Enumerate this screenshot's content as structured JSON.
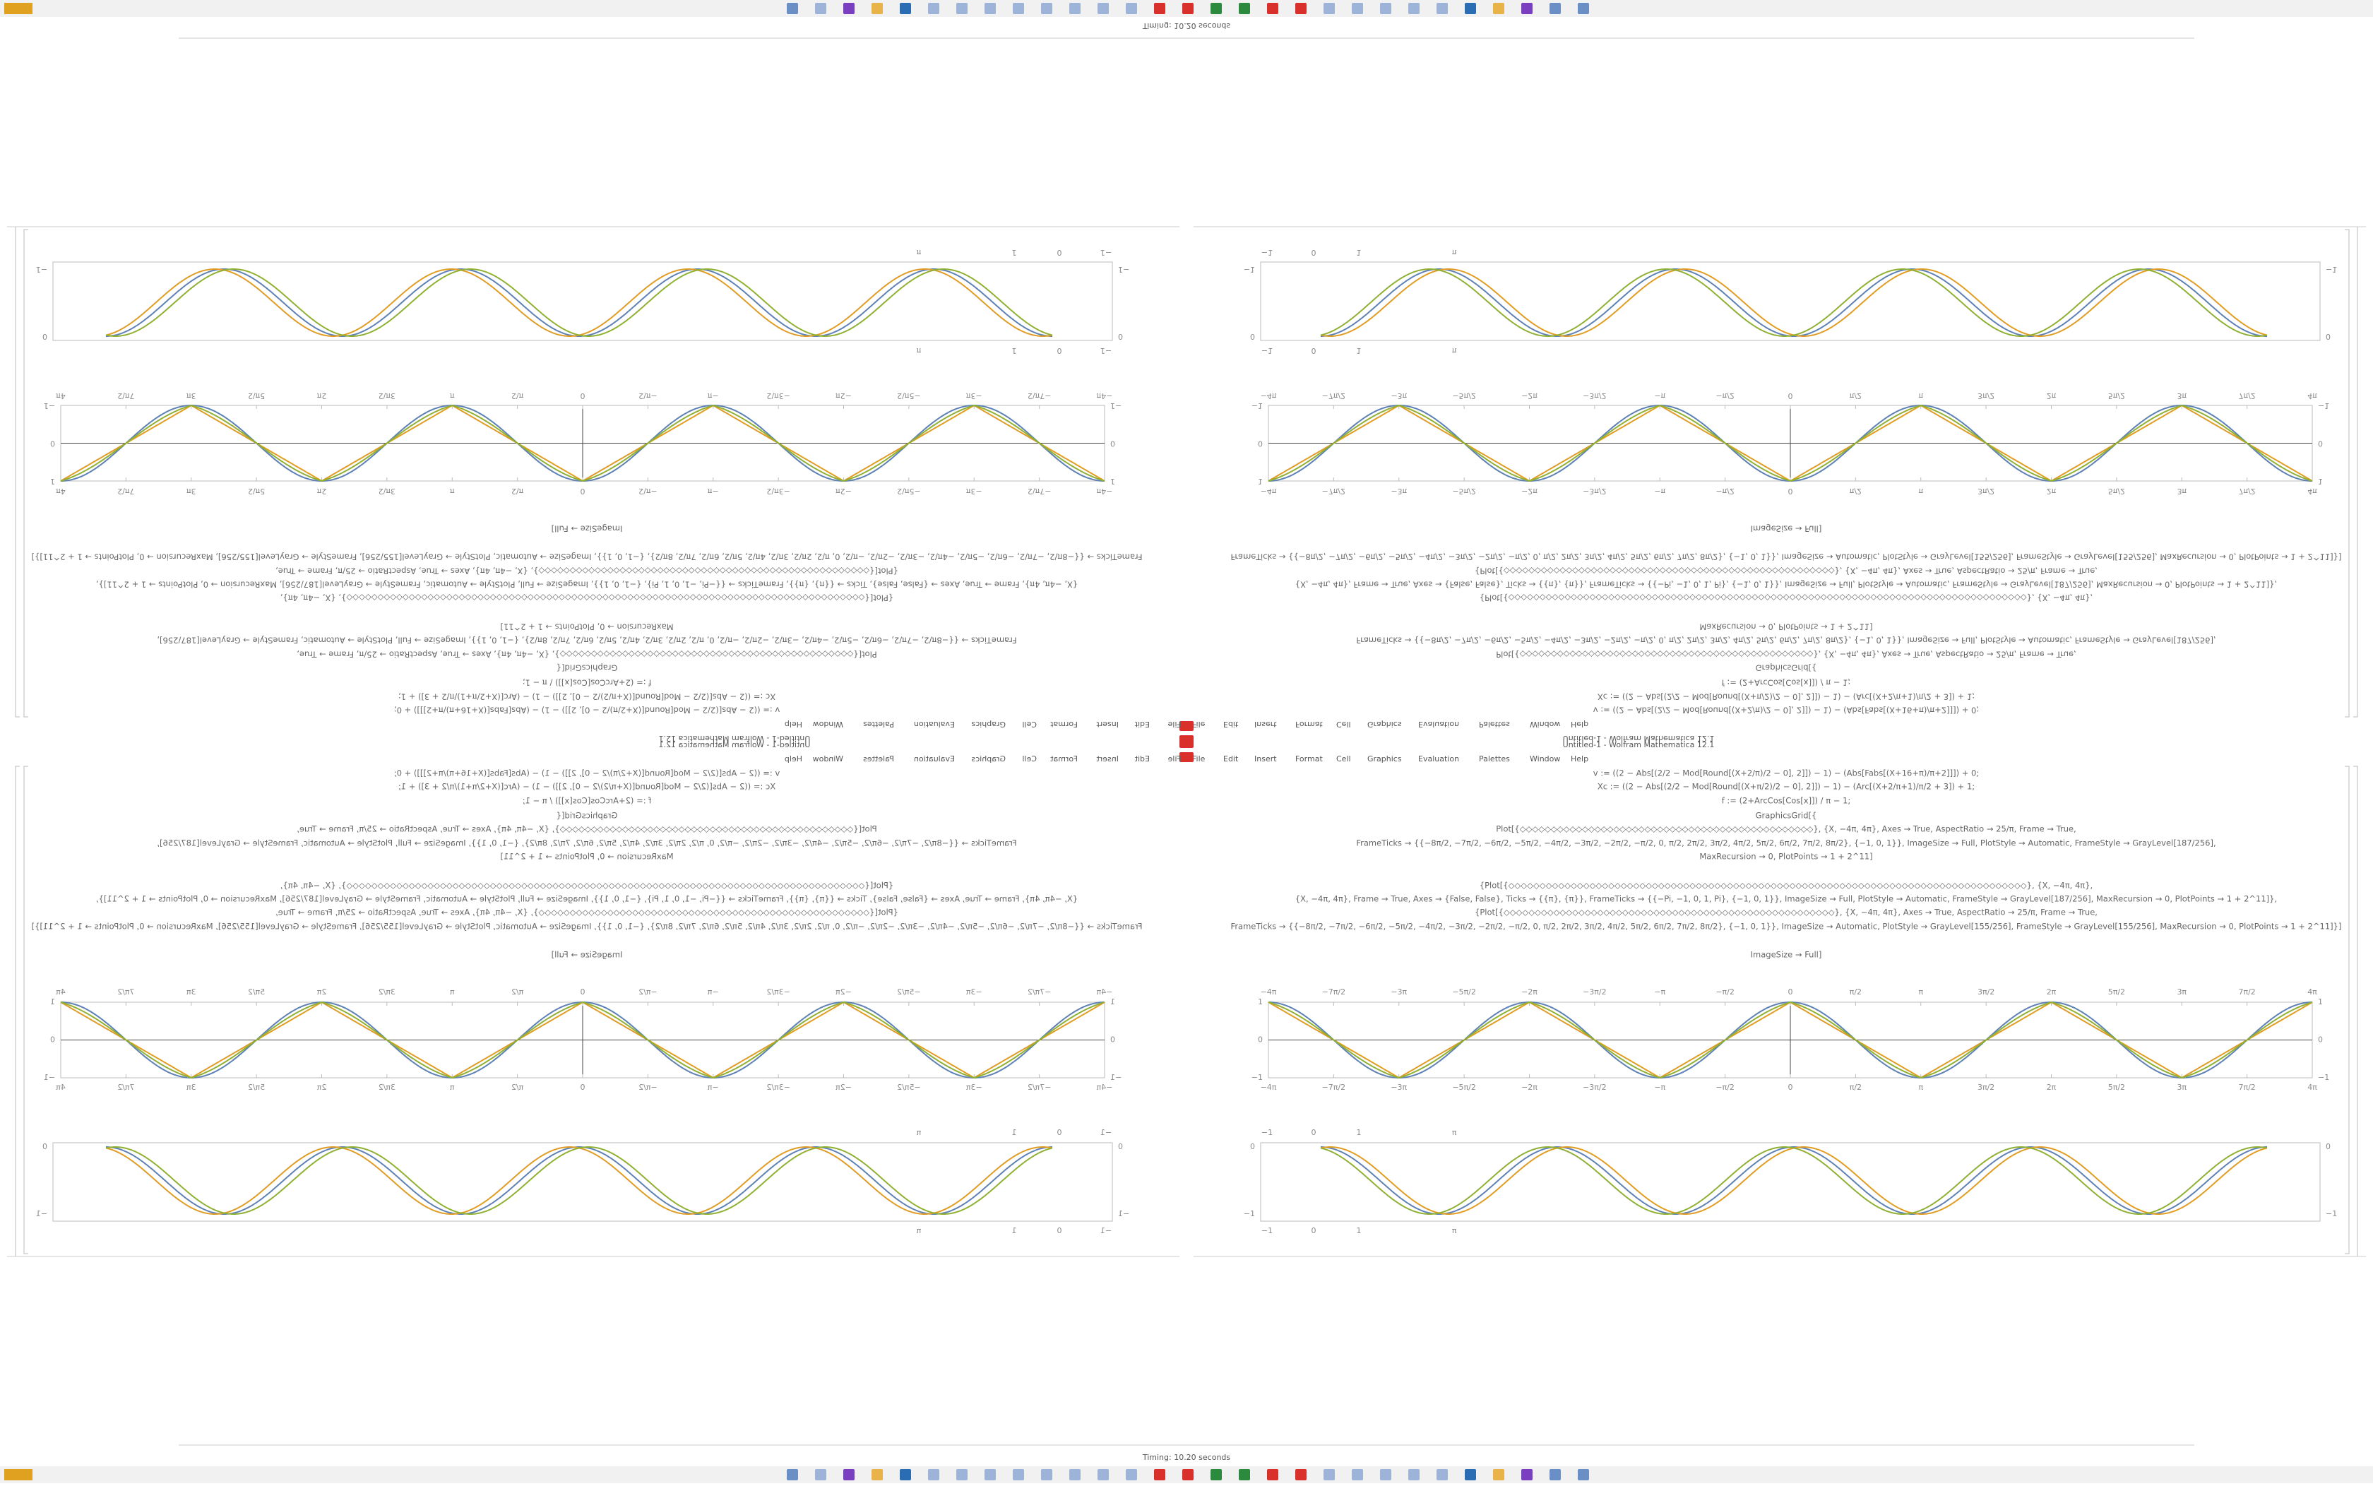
{
  "window": {
    "title": "Untitled-1 - Wolfram Mathematica 12.1",
    "menu": [
      "File",
      "Edit",
      "Insert",
      "Format",
      "Cell",
      "Graphics",
      "Evaluation",
      "Palettes",
      "Window",
      "Help"
    ]
  },
  "status": "Timing: 10.20 seconds",
  "code": [
    "v := ((2 − Abs[(2/2 − Mod[Round[(X+2/π)/2 − 0], 2]]) − 1) − (Abs[Fabs[(X+16+π)/π+2]]]) + 0;",
    "Xc := ((2 − Abs[(2/2 − Mod[Round[(X+π/2)/2 − 0], 2]]) − 1) − (Arc[(X+2/π+1)/π/2 + 3]) + 1;",
    "f := (2+ArcCos[Cos[x]]) / π − 1;",
    "GraphicsGrid[{",
    "Plot[{◇◇◇◇◇◇◇◇◇◇◇◇◇◇◇◇◇◇◇◇◇◇◇◇◇◇◇◇◇◇◇◇◇◇◇◇◇◇◇◇◇◇◇◇◇◇◇}, {X, −4π, 4π}, Axes → True, AspectRatio → 25/π, Frame → True,",
    "FrameTicks → {{−8π/2, −7π/2, −6π/2, −5π/2, −4π/2, −3π/2, −2π/2, −π/2, 0, π/2, 2π/2, 3π/2, 4π/2, 5π/2, 6π/2, 7π/2, 8π/2}, {−1, 0, 1}}, ImageSize → Full, PlotStyle → Automatic, FrameStyle → GrayLevel[187/256],",
    "MaxRecursion → 0, PlotPoints → 1 + 2^11]",
    "{Plot[{◇◇◇◇◇◇◇◇◇◇◇◇◇◇◇◇◇◇◇◇◇◇◇◇◇◇◇◇◇◇◇◇◇◇◇◇◇◇◇◇◇◇◇◇◇◇◇◇◇◇◇◇◇◇◇◇◇◇◇◇◇◇◇◇◇◇◇◇◇◇◇◇◇◇◇◇◇◇◇◇◇◇◇}, {X, −4π, 4π},",
    "{X, −4π, 4π}, Frame → True, Axes → {False, False}, Ticks → {{π}, {π}}, FrameTicks → {{−Pi, −1, 0, 1, Pi}, {−1, 0, 1}}, ImageSize → Full, PlotStyle → Automatic, FrameStyle → GrayLevel[187/256], MaxRecursion → 0, PlotPoints → 1 + 2^11]},",
    "{Plot[{◇◇◇◇◇◇◇◇◇◇◇◇◇◇◇◇◇◇◇◇◇◇◇◇◇◇◇◇◇◇◇◇◇◇◇◇◇◇◇◇◇◇◇◇◇◇◇◇◇◇◇◇◇}, {X, −4π, 4π}, Axes → True, AspectRatio → 25/π, Frame → True,",
    "FrameTicks → {{−8π/2, −7π/2, −6π/2, −5π/2, −4π/2, −3π/2, −2π/2, −π/2, 0, π/2, 2π/2, 3π/2, 4π/2, 5π/2, 6π/2, 7π/2, 8π/2}, {−1, 0, 1}}, ImageSize → Automatic, PlotStyle → GrayLevel[155/256], FrameStyle → GrayLevel[155/256], MaxRecursion → 0, PlotPoints → 1 + 2^11]}]",
    "ImageSize → Full]"
  ],
  "triangle_plot": {
    "x_ticks": [
      "−4π",
      "−7π/2",
      "−3π",
      "−5π/2",
      "−2π",
      "−3π/2",
      "−π",
      "−π/2",
      "0",
      "π/2",
      "π",
      "3π/2",
      "2π",
      "5π/2",
      "3π",
      "7π/2",
      "4π"
    ],
    "y_ticks": [
      "1",
      "0",
      "−1"
    ]
  },
  "cosine_plot": {
    "x_ticks": [
      "−1",
      "0",
      "1",
      "π"
    ],
    "y_ticks": [
      "0",
      "−1"
    ]
  }
}
